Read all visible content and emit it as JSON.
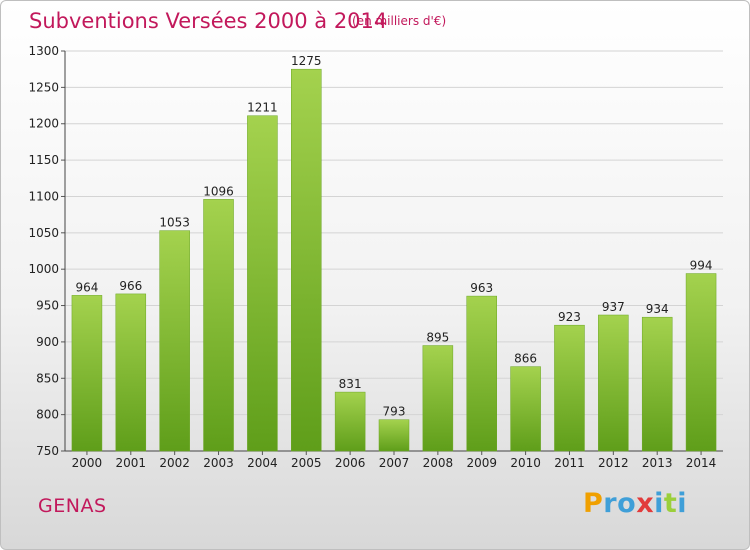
{
  "header": {
    "title": "Subventions Versées 2000 à 2014",
    "unit_note": "(en milliers d'€)"
  },
  "footer": {
    "town": "GENAS",
    "logo": {
      "letters": [
        "P",
        "r",
        "o",
        "x",
        "i",
        "t",
        "i"
      ],
      "colors": [
        "#f0a000",
        "#3f9fd8",
        "#3f9fd8",
        "#e23b3b",
        "#3f9fd8",
        "#9bcf3a",
        "#3f9fd8"
      ]
    }
  },
  "colors": {
    "bar_light": "#a4d24e",
    "bar_dark": "#5f9e1a",
    "accent": "#c2185b"
  },
  "chart_data": {
    "type": "bar",
    "title": "Subventions Versées 2000 à 2014",
    "subtitle": "(en milliers d'€)",
    "xlabel": "",
    "ylabel": "",
    "categories": [
      "2000",
      "2001",
      "2002",
      "2003",
      "2004",
      "2005",
      "2006",
      "2007",
      "2008",
      "2009",
      "2010",
      "2011",
      "2012",
      "2013",
      "2014"
    ],
    "values": [
      964,
      966,
      1053,
      1096,
      1211,
      1275,
      831,
      793,
      895,
      963,
      866,
      923,
      937,
      934,
      994
    ],
    "ylim": [
      750,
      1300
    ],
    "yticks": [
      750,
      800,
      850,
      900,
      950,
      1000,
      1050,
      1100,
      1150,
      1200,
      1250,
      1300
    ],
    "grid": true,
    "legend": "none"
  }
}
